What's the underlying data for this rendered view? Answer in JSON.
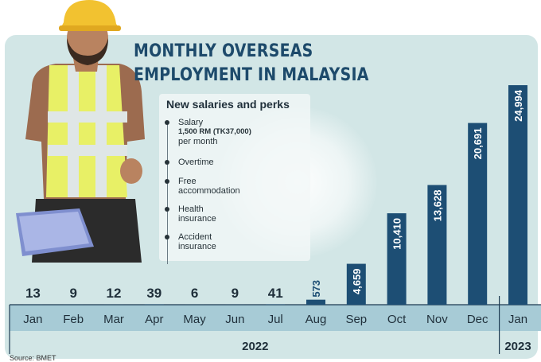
{
  "title_line1": "MONTHLY OVERSEAS",
  "title_line2": "EMPLOYMENT IN MALAYSIA",
  "perks": {
    "heading": "New salaries and perks",
    "items": [
      {
        "line1": "Salary",
        "line2": "1,500 RM (TK37,000)",
        "line3": "per month"
      },
      {
        "line1": "Overtime"
      },
      {
        "line1": "Free",
        "line2": "accommodation"
      },
      {
        "line1": "Health",
        "line2": "insurance"
      },
      {
        "line1": "Accident",
        "line2": "insurance"
      }
    ]
  },
  "source": "Source: BMET",
  "colors": {
    "bar": "#1d4e74",
    "panel": "#d2e6e6",
    "axis_band": "#a7cbd6"
  },
  "chart_data": {
    "type": "bar",
    "title": "MONTHLY OVERSEAS EMPLOYMENT IN MALAYSIA",
    "categories": [
      "Jan",
      "Feb",
      "Mar",
      "Apr",
      "May",
      "Jun",
      "Jul",
      "Aug",
      "Sep",
      "Oct",
      "Nov",
      "Dec",
      "Jan"
    ],
    "values": [
      13,
      9,
      12,
      39,
      6,
      9,
      41,
      573,
      4659,
      10410,
      13628,
      20691,
      24994
    ],
    "value_labels": [
      "13",
      "9",
      "12",
      "39",
      "6",
      "9",
      "41",
      "573",
      "4,659",
      "10,410",
      "13,628",
      "20,691",
      "24,994"
    ],
    "year_groups": [
      {
        "label": "2022",
        "from": 0,
        "to": 11
      },
      {
        "label": "2023",
        "from": 12,
        "to": 12
      }
    ],
    "ylim": [
      0,
      25000
    ],
    "grid": false,
    "legend": "none"
  }
}
